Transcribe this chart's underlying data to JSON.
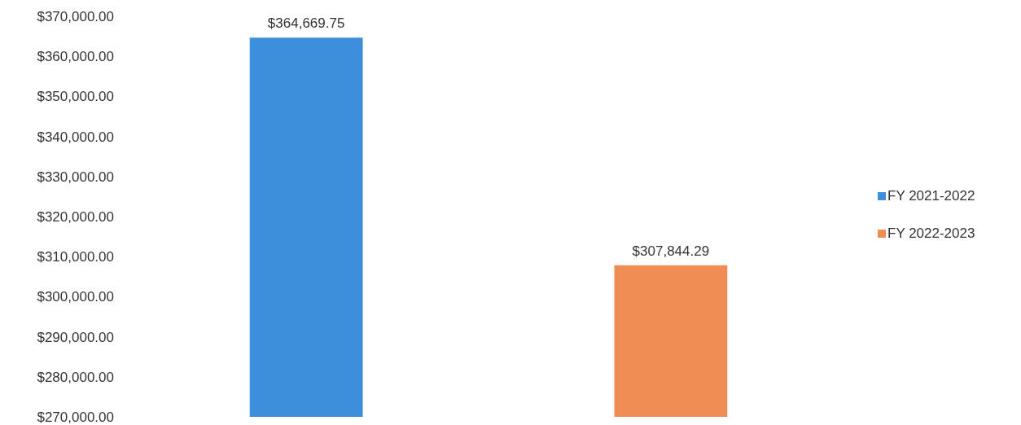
{
  "chart_data": {
    "type": "bar",
    "categories": [
      null,
      null
    ],
    "stacked": true,
    "series": [
      {
        "name": "FY 2021-2022",
        "color": "#3d8edb",
        "values": [
          364669.75,
          null
        ],
        "value_labels": [
          "$364,669.75",
          null
        ]
      },
      {
        "name": "FY 2022-2023",
        "color": "#ef8d55",
        "values": [
          null,
          307844.29
        ],
        "value_labels": [
          null,
          "$307,844.29"
        ]
      }
    ],
    "ylim": [
      270000,
      370000
    ],
    "yticks": [
      {
        "value": 270000,
        "label": "$270,000.00"
      },
      {
        "value": 280000,
        "label": "$280,000.00"
      },
      {
        "value": 290000,
        "label": "$290,000.00"
      },
      {
        "value": 300000,
        "label": "$300,000.00"
      },
      {
        "value": 310000,
        "label": "$310,000.00"
      },
      {
        "value": 320000,
        "label": "$320,000.00"
      },
      {
        "value": 330000,
        "label": "$330,000.00"
      },
      {
        "value": 340000,
        "label": "$340,000.00"
      },
      {
        "value": 350000,
        "label": "$350,000.00"
      },
      {
        "value": 360000,
        "label": "$360,000.00"
      },
      {
        "value": 370000,
        "label": "$370,000.00"
      }
    ],
    "grid": false,
    "legend": "right"
  }
}
